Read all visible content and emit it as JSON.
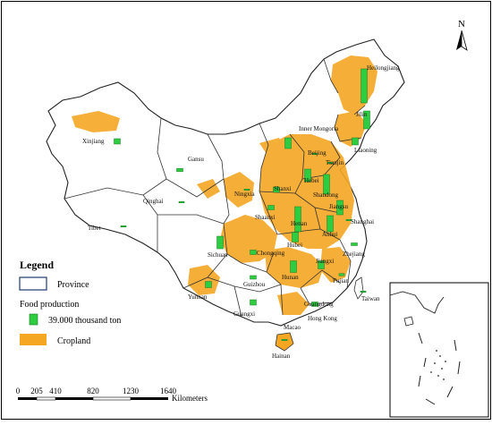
{
  "colors": {
    "cropland": "#F5A623",
    "food_production": "#2ECC40",
    "province_border": "#333333",
    "frame": "#000000",
    "background": "#ffffff"
  },
  "north_arrow": {
    "label": "N",
    "icon": "north-arrow-icon"
  },
  "legend": {
    "title": "Legend",
    "province": "Province",
    "food_production_title": "Food production",
    "food_production_item": "39.000 thousand ton",
    "cropland": "Cropland"
  },
  "scale_bar": {
    "ticks": [
      "0",
      "205",
      "410",
      "820",
      "1230",
      "1640"
    ],
    "unit": "Kilometers"
  },
  "provinces": [
    {
      "id": "heilongjiang",
      "label": "Heilongjiang",
      "production": 38.0
    },
    {
      "id": "jilin",
      "label": "Jilin",
      "production": 20.0
    },
    {
      "id": "liaoning",
      "label": "Liaoning",
      "production": 8.0
    },
    {
      "id": "inner-mongolia",
      "label": "Inner Mongoria",
      "production": 12.0
    },
    {
      "id": "xinjiang",
      "label": "Xinjiang",
      "production": 6.0
    },
    {
      "id": "gansu",
      "label": "Gansu",
      "production": 3.6
    },
    {
      "id": "qinghai",
      "label": "Qinghai",
      "production": 0.5
    },
    {
      "id": "tibet",
      "label": "Tibet",
      "production": 0.3
    },
    {
      "id": "beijing",
      "label": "Beijing",
      "production": 0.3
    },
    {
      "id": "tianjin",
      "label": "Tianjin",
      "production": 0.8
    },
    {
      "id": "hebei",
      "label": "Hebei",
      "production": 14.0
    },
    {
      "id": "shanxi",
      "label": "Shanxi",
      "production": 6.0
    },
    {
      "id": "shandong",
      "label": "Shandong",
      "production": 22.0
    },
    {
      "id": "ningxia",
      "label": "Ningxia",
      "production": 1.5
    },
    {
      "id": "shaanxi",
      "label": "Shaanxi",
      "production": 5.0
    },
    {
      "id": "henan",
      "label": "Henan",
      "production": 28.0
    },
    {
      "id": "jiangsu",
      "label": "Jiangsu",
      "production": 16.0
    },
    {
      "id": "anhui",
      "label": "Anhui",
      "production": 18.0
    },
    {
      "id": "shanghai",
      "label": "Shanghai",
      "production": 0.5
    },
    {
      "id": "sichuan",
      "label": "Sichuan",
      "production": 14.0
    },
    {
      "id": "chongqing",
      "label": "Chongqing",
      "production": 5.0
    },
    {
      "id": "hubei",
      "label": "Hubei",
      "production": 11.0
    },
    {
      "id": "zhejiang",
      "label": "Zhejiang",
      "production": 3.0
    },
    {
      "id": "guizhou",
      "label": "Guizhou",
      "production": 4.0
    },
    {
      "id": "hunan",
      "label": "Hunan",
      "production": 13.0
    },
    {
      "id": "jiangxi",
      "label": "Jiangxi",
      "production": 9.0
    },
    {
      "id": "fujian",
      "label": "Fujian",
      "production": 2.5
    },
    {
      "id": "yunnan",
      "label": "Yunnan",
      "production": 7.0
    },
    {
      "id": "guangxi",
      "label": "Guangxi",
      "production": 6.0
    },
    {
      "id": "guangdong",
      "label": "Guangdong",
      "production": 5.0
    },
    {
      "id": "taiwan",
      "label": "Taiwan",
      "production": 0.3
    },
    {
      "id": "hong-kong",
      "label": "Hong Kong",
      "production": 0
    },
    {
      "id": "macao",
      "label": "Macao",
      "production": 0
    },
    {
      "id": "hainan",
      "label": "Hainan",
      "production": 1.0
    }
  ]
}
